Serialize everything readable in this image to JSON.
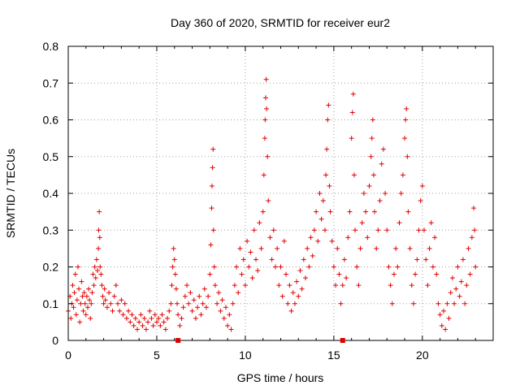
{
  "chart_data": {
    "type": "scatter",
    "title": "Day 360 of 2020, SRMTID for receiver eur2",
    "xlabel": "GPS time / hours",
    "ylabel": "SRMTID / TECUs",
    "xlim": [
      0,
      24
    ],
    "ylim": [
      0,
      0.8
    ],
    "xticks": [
      0,
      5,
      10,
      15,
      20
    ],
    "yticks": [
      0,
      0.1,
      0.2,
      0.3,
      0.4,
      0.5,
      0.6,
      0.7,
      0.8
    ],
    "xtick_labels": [
      "0",
      "5",
      "10",
      "15",
      "20"
    ],
    "ytick_labels": [
      "0",
      "0.1",
      "0.2",
      "0.3",
      "0.4",
      "0.5",
      "0.6",
      "0.7",
      "0.8"
    ],
    "grid": true,
    "marker": "plus",
    "color": "#e00000",
    "axis_markers_x": [
      6.2,
      15.5
    ],
    "series": [
      {
        "name": "SRMTID",
        "description": "Dense scatter of + markers; points listed as [hour, TECU] estimates",
        "points": [
          [
            0.0,
            0.08
          ],
          [
            0.1,
            0.12
          ],
          [
            0.15,
            0.06
          ],
          [
            0.2,
            0.1
          ],
          [
            0.25,
            0.15
          ],
          [
            0.3,
            0.09
          ],
          [
            0.35,
            0.13
          ],
          [
            0.4,
            0.18
          ],
          [
            0.45,
            0.07
          ],
          [
            0.5,
            0.11
          ],
          [
            0.55,
            0.2
          ],
          [
            0.6,
            0.14
          ],
          [
            0.65,
            0.05
          ],
          [
            0.7,
            0.1
          ],
          [
            0.75,
            0.16
          ],
          [
            0.8,
            0.12
          ],
          [
            0.85,
            0.08
          ],
          [
            0.9,
            0.13
          ],
          [
            0.95,
            0.1
          ],
          [
            1.0,
            0.07
          ],
          [
            1.05,
            0.12
          ],
          [
            1.1,
            0.09
          ],
          [
            1.15,
            0.14
          ],
          [
            1.2,
            0.11
          ],
          [
            1.25,
            0.06
          ],
          [
            1.3,
            0.1
          ],
          [
            1.35,
            0.13
          ],
          [
            1.4,
            0.18
          ],
          [
            1.45,
            0.15
          ],
          [
            1.5,
            0.2
          ],
          [
            1.55,
            0.17
          ],
          [
            1.6,
            0.22
          ],
          [
            1.65,
            0.19
          ],
          [
            1.7,
            0.25
          ],
          [
            1.72,
            0.3
          ],
          [
            1.75,
            0.35
          ],
          [
            1.78,
            0.28
          ],
          [
            1.8,
            0.2
          ],
          [
            1.85,
            0.18
          ],
          [
            1.9,
            0.15
          ],
          [
            1.95,
            0.12
          ],
          [
            2.0,
            0.1
          ],
          [
            2.05,
            0.14
          ],
          [
            2.1,
            0.11
          ],
          [
            2.2,
            0.09
          ],
          [
            2.3,
            0.13
          ],
          [
            2.4,
            0.1
          ],
          [
            2.5,
            0.08
          ],
          [
            2.6,
            0.12
          ],
          [
            2.7,
            0.15
          ],
          [
            2.8,
            0.1
          ],
          [
            2.9,
            0.08
          ],
          [
            3.0,
            0.11
          ],
          [
            3.1,
            0.07
          ],
          [
            3.2,
            0.1
          ],
          [
            3.3,
            0.06
          ],
          [
            3.4,
            0.08
          ],
          [
            3.5,
            0.05
          ],
          [
            3.6,
            0.07
          ],
          [
            3.7,
            0.04
          ],
          [
            3.8,
            0.06
          ],
          [
            3.9,
            0.03
          ],
          [
            4.0,
            0.05
          ],
          [
            4.1,
            0.07
          ],
          [
            4.2,
            0.04
          ],
          [
            4.3,
            0.06
          ],
          [
            4.4,
            0.03
          ],
          [
            4.5,
            0.05
          ],
          [
            4.6,
            0.08
          ],
          [
            4.7,
            0.06
          ],
          [
            4.8,
            0.04
          ],
          [
            4.9,
            0.07
          ],
          [
            5.0,
            0.05
          ],
          [
            5.1,
            0.06
          ],
          [
            5.2,
            0.04
          ],
          [
            5.3,
            0.07
          ],
          [
            5.4,
            0.05
          ],
          [
            5.5,
            0.03
          ],
          [
            5.6,
            0.06
          ],
          [
            5.7,
            0.08
          ],
          [
            5.8,
            0.1
          ],
          [
            5.85,
            0.15
          ],
          [
            5.9,
            0.2
          ],
          [
            5.95,
            0.25
          ],
          [
            6.0,
            0.22
          ],
          [
            6.05,
            0.18
          ],
          [
            6.1,
            0.14
          ],
          [
            6.15,
            0.1
          ],
          [
            6.2,
            0.07
          ],
          [
            6.3,
            0.04
          ],
          [
            6.4,
            0.06
          ],
          [
            6.5,
            0.09
          ],
          [
            6.6,
            0.12
          ],
          [
            6.7,
            0.15
          ],
          [
            6.8,
            0.1
          ],
          [
            6.9,
            0.13
          ],
          [
            7.0,
            0.08
          ],
          [
            7.1,
            0.11
          ],
          [
            7.2,
            0.06
          ],
          [
            7.3,
            0.09
          ],
          [
            7.4,
            0.12
          ],
          [
            7.5,
            0.07
          ],
          [
            7.6,
            0.1
          ],
          [
            7.7,
            0.14
          ],
          [
            7.8,
            0.09
          ],
          [
            7.9,
            0.12
          ],
          [
            8.0,
            0.18
          ],
          [
            8.05,
            0.26
          ],
          [
            8.1,
            0.36
          ],
          [
            8.12,
            0.42
          ],
          [
            8.15,
            0.47
          ],
          [
            8.18,
            0.52
          ],
          [
            8.2,
            0.3
          ],
          [
            8.25,
            0.2
          ],
          [
            8.3,
            0.15
          ],
          [
            8.4,
            0.1
          ],
          [
            8.5,
            0.13
          ],
          [
            8.6,
            0.08
          ],
          [
            8.7,
            0.11
          ],
          [
            8.8,
            0.06
          ],
          [
            8.9,
            0.09
          ],
          [
            9.0,
            0.04
          ],
          [
            9.1,
            0.07
          ],
          [
            9.2,
            0.03
          ],
          [
            9.3,
            0.1
          ],
          [
            9.4,
            0.15
          ],
          [
            9.5,
            0.2
          ],
          [
            9.6,
            0.13
          ],
          [
            9.7,
            0.25
          ],
          [
            9.8,
            0.18
          ],
          [
            9.9,
            0.22
          ],
          [
            10.0,
            0.15
          ],
          [
            10.1,
            0.27
          ],
          [
            10.2,
            0.2
          ],
          [
            10.3,
            0.24
          ],
          [
            10.4,
            0.17
          ],
          [
            10.5,
            0.3
          ],
          [
            10.6,
            0.22
          ],
          [
            10.7,
            0.19
          ],
          [
            10.8,
            0.32
          ],
          [
            10.9,
            0.25
          ],
          [
            11.0,
            0.35
          ],
          [
            11.05,
            0.45
          ],
          [
            11.1,
            0.55
          ],
          [
            11.12,
            0.6
          ],
          [
            11.15,
            0.66
          ],
          [
            11.18,
            0.71
          ],
          [
            11.2,
            0.63
          ],
          [
            11.25,
            0.5
          ],
          [
            11.3,
            0.38
          ],
          [
            11.4,
            0.28
          ],
          [
            11.5,
            0.22
          ],
          [
            11.6,
            0.3
          ],
          [
            11.7,
            0.2
          ],
          [
            11.8,
            0.25
          ],
          [
            11.9,
            0.15
          ],
          [
            12.0,
            0.2
          ],
          [
            12.1,
            0.12
          ],
          [
            12.2,
            0.27
          ],
          [
            12.3,
            0.18
          ],
          [
            12.4,
            0.1
          ],
          [
            12.5,
            0.15
          ],
          [
            12.6,
            0.08
          ],
          [
            12.7,
            0.13
          ],
          [
            12.8,
            0.1
          ],
          [
            12.9,
            0.16
          ],
          [
            13.0,
            0.12
          ],
          [
            13.1,
            0.19
          ],
          [
            13.2,
            0.14
          ],
          [
            13.3,
            0.22
          ],
          [
            13.4,
            0.17
          ],
          [
            13.5,
            0.25
          ],
          [
            13.6,
            0.2
          ],
          [
            13.7,
            0.28
          ],
          [
            13.8,
            0.23
          ],
          [
            13.9,
            0.3
          ],
          [
            14.0,
            0.35
          ],
          [
            14.1,
            0.27
          ],
          [
            14.2,
            0.4
          ],
          [
            14.3,
            0.33
          ],
          [
            14.4,
            0.38
          ],
          [
            14.5,
            0.3
          ],
          [
            14.55,
            0.45
          ],
          [
            14.6,
            0.52
          ],
          [
            14.65,
            0.6
          ],
          [
            14.7,
            0.64
          ],
          [
            14.75,
            0.42
          ],
          [
            14.8,
            0.35
          ],
          [
            14.9,
            0.27
          ],
          [
            15.0,
            0.2
          ],
          [
            15.1,
            0.15
          ],
          [
            15.2,
            0.25
          ],
          [
            15.3,
            0.18
          ],
          [
            15.4,
            0.1
          ],
          [
            15.5,
            0.15
          ],
          [
            15.6,
            0.22
          ],
          [
            15.7,
            0.17
          ],
          [
            15.8,
            0.28
          ],
          [
            15.9,
            0.35
          ],
          [
            16.0,
            0.55
          ],
          [
            16.05,
            0.62
          ],
          [
            16.1,
            0.67
          ],
          [
            16.15,
            0.45
          ],
          [
            16.2,
            0.3
          ],
          [
            16.3,
            0.2
          ],
          [
            16.4,
            0.15
          ],
          [
            16.5,
            0.25
          ],
          [
            16.6,
            0.32
          ],
          [
            16.7,
            0.4
          ],
          [
            16.8,
            0.35
          ],
          [
            16.9,
            0.28
          ],
          [
            17.0,
            0.42
          ],
          [
            17.1,
            0.5
          ],
          [
            17.15,
            0.55
          ],
          [
            17.2,
            0.6
          ],
          [
            17.25,
            0.45
          ],
          [
            17.3,
            0.35
          ],
          [
            17.4,
            0.25
          ],
          [
            17.5,
            0.3
          ],
          [
            17.6,
            0.38
          ],
          [
            17.7,
            0.48
          ],
          [
            17.8,
            0.52
          ],
          [
            17.9,
            0.4
          ],
          [
            18.0,
            0.3
          ],
          [
            18.1,
            0.2
          ],
          [
            18.2,
            0.15
          ],
          [
            18.3,
            0.1
          ],
          [
            18.4,
            0.18
          ],
          [
            18.5,
            0.25
          ],
          [
            18.6,
            0.2
          ],
          [
            18.7,
            0.32
          ],
          [
            18.8,
            0.4
          ],
          [
            18.9,
            0.45
          ],
          [
            19.0,
            0.55
          ],
          [
            19.05,
            0.6
          ],
          [
            19.1,
            0.63
          ],
          [
            19.15,
            0.5
          ],
          [
            19.2,
            0.35
          ],
          [
            19.3,
            0.25
          ],
          [
            19.4,
            0.15
          ],
          [
            19.5,
            0.1
          ],
          [
            19.6,
            0.18
          ],
          [
            19.7,
            0.22
          ],
          [
            19.8,
            0.3
          ],
          [
            19.9,
            0.38
          ],
          [
            20.0,
            0.42
          ],
          [
            20.1,
            0.3
          ],
          [
            20.2,
            0.22
          ],
          [
            20.3,
            0.15
          ],
          [
            20.4,
            0.25
          ],
          [
            20.5,
            0.32
          ],
          [
            20.6,
            0.2
          ],
          [
            20.7,
            0.28
          ],
          [
            20.8,
            0.18
          ],
          [
            20.9,
            0.1
          ],
          [
            21.0,
            0.07
          ],
          [
            21.1,
            0.04
          ],
          [
            21.2,
            0.08
          ],
          [
            21.3,
            0.03
          ],
          [
            21.4,
            0.1
          ],
          [
            21.5,
            0.06
          ],
          [
            21.6,
            0.13
          ],
          [
            21.7,
            0.17
          ],
          [
            21.8,
            0.1
          ],
          [
            21.9,
            0.14
          ],
          [
            22.0,
            0.2
          ],
          [
            22.1,
            0.12
          ],
          [
            22.2,
            0.16
          ],
          [
            22.3,
            0.22
          ],
          [
            22.4,
            0.1
          ],
          [
            22.5,
            0.15
          ],
          [
            22.6,
            0.25
          ],
          [
            22.7,
            0.18
          ],
          [
            22.8,
            0.28
          ],
          [
            22.9,
            0.36
          ],
          [
            22.95,
            0.3
          ],
          [
            23.0,
            0.2
          ]
        ]
      }
    ]
  }
}
